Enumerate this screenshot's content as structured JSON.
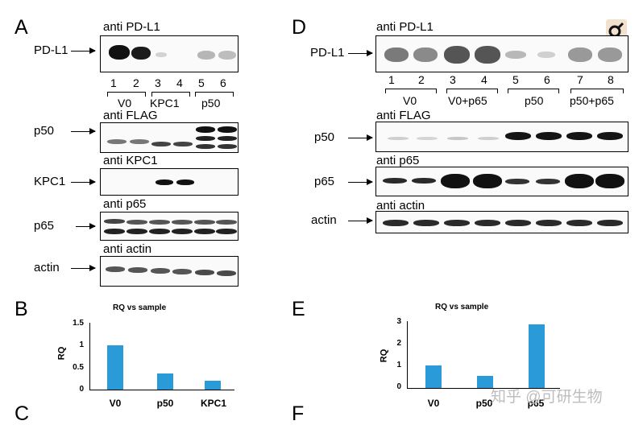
{
  "panels": {
    "A": "A",
    "B": "B",
    "C": "C",
    "D": "D",
    "E": "E",
    "F": "F"
  },
  "panel_a": {
    "antibodies": [
      "anti PD-L1",
      "anti FLAG",
      "anti KPC1",
      "anti p65",
      "anti actin"
    ],
    "row_labels": [
      "PD-L1",
      "p50",
      "KPC1",
      "p65",
      "actin"
    ],
    "lanes": [
      "1",
      "2",
      "3",
      "4",
      "5",
      "6"
    ],
    "groups": [
      "V0",
      "KPC1",
      "p50"
    ]
  },
  "panel_d": {
    "antibodies": [
      "anti PD-L1",
      "anti FLAG",
      "anti p65",
      "anti actin"
    ],
    "row_labels": [
      "PD-L1",
      "p50",
      "p65",
      "actin"
    ],
    "lanes": [
      "1",
      "2",
      "3",
      "4",
      "5",
      "6",
      "7",
      "8"
    ],
    "groups": [
      "V0",
      "V0+p65",
      "p50",
      "p50+p65"
    ]
  },
  "chart_data": [
    {
      "type": "bar",
      "title": "RQ vs sample",
      "ylabel": "RQ",
      "categories": [
        "V0",
        "p50",
        "KPC1"
      ],
      "values": [
        1.0,
        0.37,
        0.2
      ],
      "ylim": [
        0,
        1.5
      ],
      "yticks": [
        "0",
        "0.5",
        "1",
        "1.5"
      ],
      "color": "#2a9ad8"
    },
    {
      "type": "bar",
      "title": "RQ vs sample",
      "ylabel": "RQ",
      "categories": [
        "V0",
        "p50",
        "p65"
      ],
      "values": [
        1.0,
        0.55,
        2.85
      ],
      "ylim": [
        0,
        3
      ],
      "yticks": [
        "0",
        "1",
        "2",
        "3"
      ],
      "color": "#2a9ad8"
    }
  ],
  "watermark": "知乎 @可研生物"
}
